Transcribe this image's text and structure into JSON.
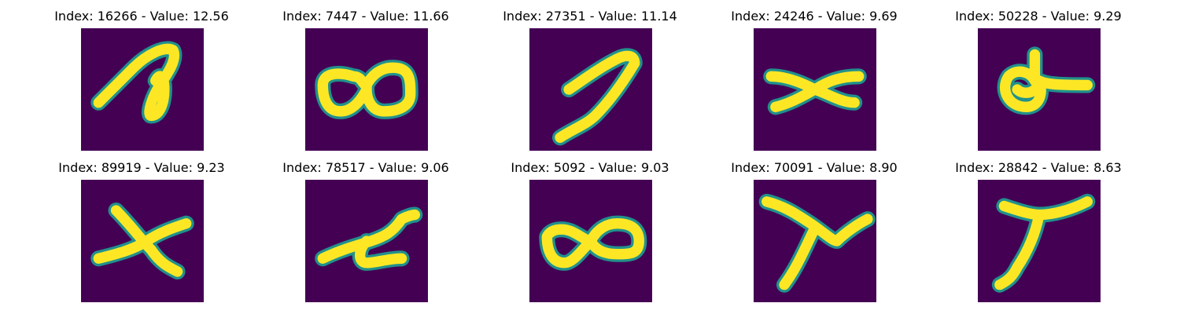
{
  "image_background": "#440154",
  "stroke_edge_color": "#21918c",
  "stroke_color": "#fde725",
  "panels": [
    {
      "title": "Index: 16266 - Value: 12.56",
      "glyph": "loop-scribble"
    },
    {
      "title": "Index: 7447 - Value: 11.66",
      "glyph": "double-loop"
    },
    {
      "title": "Index: 27351 - Value: 11.14",
      "glyph": "diagonal-hook"
    },
    {
      "title": "Index: 24246 - Value: 9.69",
      "glyph": "x-cross"
    },
    {
      "title": "Index: 50228 - Value: 9.29",
      "glyph": "loop-with-dash"
    },
    {
      "title": "Index: 89919 - Value: 9.23",
      "glyph": "skewed-cross"
    },
    {
      "title": "Index: 78517 - Value: 9.06",
      "glyph": "zigzag"
    },
    {
      "title": "Index: 5092 - Value: 9.03",
      "glyph": "figure-eight"
    },
    {
      "title": "Index: 70091 - Value: 8.90",
      "glyph": "y-shape"
    },
    {
      "title": "Index: 28842 - Value: 8.63",
      "glyph": "seven-shape"
    }
  ]
}
